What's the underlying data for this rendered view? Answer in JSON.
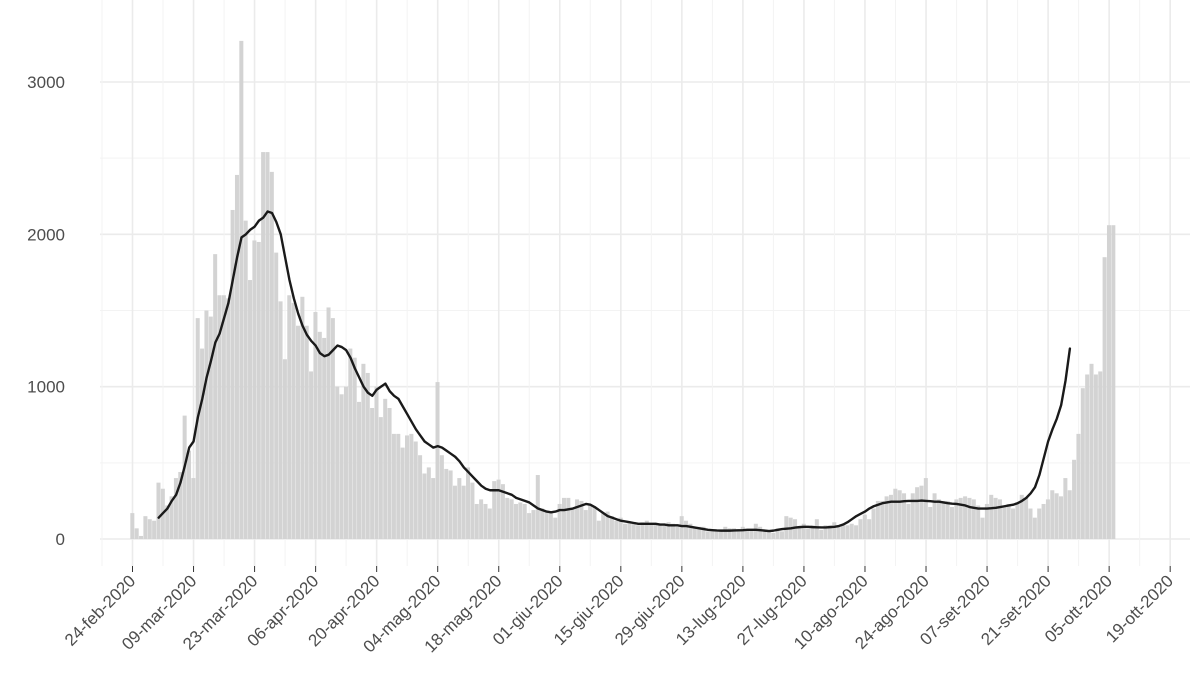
{
  "chart_data": {
    "type": "bar",
    "title": "",
    "xlabel": "",
    "ylabel": "",
    "ylim": [
      0,
      3150
    ],
    "yticks": [
      0,
      1000,
      2000,
      3000
    ],
    "grid": true,
    "bar_color": "#d3d3d3",
    "line_color": "#1a1a1a",
    "start_date": "2020-02-24",
    "x_tick_labels": [
      "24-feb-2020",
      "09-mar-2020",
      "23-mar-2020",
      "06-apr-2020",
      "20-apr-2020",
      "04-mag-2020",
      "18-mag-2020",
      "01-giu-2020",
      "15-giu-2020",
      "29-giu-2020",
      "13-lug-2020",
      "27-lug-2020",
      "10-ago-2020",
      "24-ago-2020",
      "07-set-2020",
      "21-set-2020",
      "05-ott-2020",
      "19-ott-2020"
    ],
    "series": [
      {
        "type": "bar",
        "values": [
          170,
          70,
          20,
          150,
          130,
          120,
          370,
          330,
          220,
          280,
          400,
          440,
          810,
          580,
          400,
          1450,
          1250,
          1500,
          1460,
          1870,
          1600,
          1600,
          1580,
          2160,
          2390,
          3270,
          2090,
          1700,
          1960,
          1950,
          2540,
          2540,
          2410,
          1880,
          1560,
          1180,
          1600,
          1550,
          1400,
          1590,
          1400,
          1100,
          1490,
          1360,
          1320,
          1520,
          1450,
          1000,
          950,
          1000,
          1250,
          1190,
          900,
          1150,
          1090,
          860,
          1000,
          800,
          920,
          860,
          690,
          690,
          600,
          680,
          690,
          640,
          550,
          430,
          470,
          400,
          1030,
          550,
          460,
          450,
          350,
          400,
          350,
          470,
          370,
          230,
          260,
          230,
          200,
          380,
          390,
          360,
          270,
          260,
          230,
          240,
          230,
          170,
          190,
          420,
          200,
          180,
          180,
          140,
          230,
          270,
          270,
          200,
          260,
          250,
          190,
          230,
          210,
          120,
          170,
          180,
          150,
          120,
          140,
          100,
          110,
          100,
          90,
          110,
          120,
          100,
          100,
          90,
          100,
          110,
          100,
          80,
          150,
          120,
          100,
          80,
          80,
          80,
          50,
          50,
          60,
          50,
          80,
          70,
          70,
          60,
          80,
          60,
          60,
          100,
          80,
          60,
          60,
          40,
          70,
          50,
          150,
          140,
          130,
          80,
          100,
          70,
          90,
          130,
          60,
          90,
          90,
          110,
          90,
          90,
          90,
          100,
          90,
          130,
          160,
          130,
          200,
          250,
          250,
          280,
          290,
          330,
          320,
          300,
          230,
          300,
          340,
          350,
          400,
          210,
          300,
          260,
          250,
          250,
          210,
          260,
          270,
          280,
          270,
          260,
          220,
          140,
          230,
          290,
          270,
          260,
          220,
          230,
          200,
          240,
          290,
          270,
          200,
          140,
          200,
          230,
          260,
          320,
          300,
          280,
          400,
          320,
          520,
          690,
          990,
          1080,
          1150,
          1080,
          1100,
          1850,
          2060,
          2060
        ],
        "name": ""
      },
      {
        "type": "line",
        "values": [
          null,
          null,
          null,
          null,
          null,
          null,
          140,
          170,
          200,
          250,
          290,
          370,
          480,
          600,
          640,
          800,
          920,
          1060,
          1170,
          1290,
          1350,
          1450,
          1550,
          1700,
          1850,
          1980,
          2000,
          2030,
          2050,
          2090,
          2110,
          2150,
          2140,
          2080,
          2000,
          1850,
          1700,
          1580,
          1480,
          1400,
          1340,
          1300,
          1270,
          1220,
          1200,
          1210,
          1240,
          1270,
          1260,
          1240,
          1190,
          1120,
          1060,
          1000,
          960,
          940,
          980,
          1000,
          1020,
          970,
          940,
          920,
          870,
          820,
          770,
          720,
          680,
          640,
          620,
          600,
          610,
          600,
          580,
          560,
          540,
          510,
          470,
          440,
          410,
          380,
          350,
          330,
          320,
          320,
          320,
          310,
          300,
          290,
          270,
          260,
          250,
          240,
          220,
          200,
          190,
          180,
          175,
          180,
          190,
          190,
          195,
          200,
          210,
          220,
          230,
          225,
          210,
          190,
          170,
          150,
          140,
          130,
          120,
          115,
          110,
          105,
          100,
          100,
          100,
          100,
          100,
          95,
          95,
          90,
          90,
          90,
          85,
          85,
          80,
          75,
          70,
          65,
          60,
          58,
          56,
          55,
          55,
          55,
          56,
          57,
          58,
          60,
          60,
          60,
          58,
          55,
          52,
          55,
          60,
          65,
          68,
          70,
          75,
          78,
          80,
          80,
          78,
          77,
          76,
          76,
          78,
          80,
          85,
          95,
          110,
          130,
          150,
          165,
          180,
          200,
          215,
          225,
          235,
          240,
          245,
          245,
          245,
          248,
          250,
          250,
          250,
          252,
          250,
          248,
          245,
          245,
          240,
          235,
          232,
          230,
          225,
          220,
          210,
          205,
          200,
          200,
          200,
          202,
          205,
          210,
          215,
          220,
          225,
          235,
          250,
          270,
          300,
          340,
          420,
          530,
          640,
          720,
          790,
          880,
          1040,
          1250
        ],
        "name": ""
      }
    ]
  }
}
